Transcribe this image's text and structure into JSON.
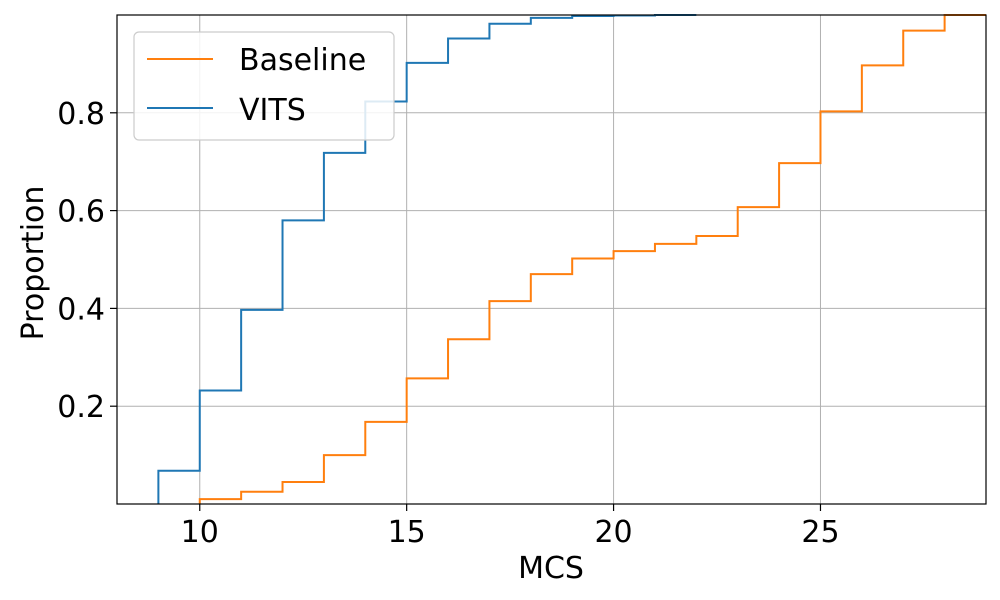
{
  "chart_data": {
    "type": "line",
    "subtype": "ecdf-step",
    "xlabel": "MCS",
    "ylabel": "Proportion",
    "xlim": [
      8,
      29
    ],
    "ylim": [
      0,
      1
    ],
    "x_ticks": [
      10,
      15,
      20,
      25
    ],
    "y_ticks": [
      0.2,
      0.4,
      0.6,
      0.8
    ],
    "x_tick_labels": [
      "10",
      "15",
      "20",
      "25"
    ],
    "y_tick_labels": [
      "0.2",
      "0.4",
      "0.6",
      "0.8"
    ],
    "grid": true,
    "legend_position": "upper-left",
    "series": [
      {
        "name": "Baseline",
        "color": "#ff7f0e",
        "x": [
          10,
          11,
          12,
          13,
          14,
          15,
          16,
          17,
          18,
          19,
          20,
          21,
          22,
          23,
          24,
          25,
          26,
          27,
          28
        ],
        "y": [
          0.01,
          0.025,
          0.045,
          0.1,
          0.168,
          0.257,
          0.337,
          0.415,
          0.47,
          0.502,
          0.517,
          0.532,
          0.548,
          0.607,
          0.697,
          0.803,
          0.897,
          0.968,
          1.0
        ]
      },
      {
        "name": "VITS",
        "color": "#1f77b4",
        "x": [
          9,
          10,
          11,
          12,
          13,
          14,
          15,
          16,
          17,
          18,
          19,
          20,
          21
        ],
        "y": [
          0.068,
          0.232,
          0.397,
          0.58,
          0.718,
          0.823,
          0.902,
          0.952,
          0.982,
          0.994,
          0.998,
          0.999,
          1.0
        ]
      }
    ]
  }
}
